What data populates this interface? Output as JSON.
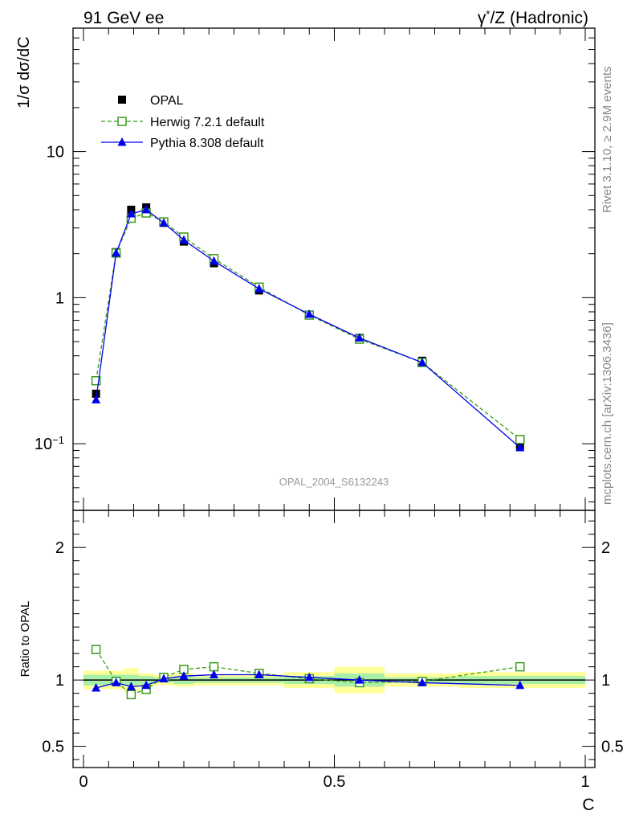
{
  "header": {
    "left": "91 GeV ee",
    "right_prefix": "γ",
    "right_sup": "*",
    "right_suffix": "/Z (Hadronic)"
  },
  "side_text": {
    "rivet_prefix": "Rivet 3.1.10, ",
    "rivet_ge": "≥",
    "rivet_suffix": " 2.9M events",
    "mcplots": "mcplots.cern.ch [arXiv:1306.3436]"
  },
  "watermark": "OPAL_2004_S6132243",
  "colors": {
    "data": "#000000",
    "herwig": "#3a9a1a",
    "pythia": "#0000ee",
    "band_inner": "#a8f0a8",
    "band_outer": "#ffff99"
  },
  "chart_data": [
    {
      "type": "line",
      "panel": "main",
      "ylabel": "1/σ dσ/dC",
      "yscale": "log",
      "xlim": [
        0,
        1
      ],
      "ylim": [
        0.035,
        70
      ],
      "yticks": [
        {
          "value": 0.1,
          "label_base": "10",
          "label_exp": "−1"
        },
        {
          "value": 1,
          "label_base": "1",
          "label_exp": ""
        },
        {
          "value": 10,
          "label_base": "10",
          "label_exp": ""
        }
      ],
      "legend": {
        "placement": "top-left",
        "entries": [
          "OPAL",
          "Herwig 7.2.1 default",
          "Pythia 8.308 default"
        ]
      },
      "x": [
        0.025,
        0.065,
        0.095,
        0.125,
        0.16,
        0.2,
        0.26,
        0.35,
        0.45,
        0.55,
        0.675,
        0.87
      ],
      "series": [
        {
          "name": "OPAL",
          "marker": "square-filled",
          "values": [
            0.22,
            2.05,
            4.0,
            4.15,
            3.25,
            2.42,
            1.72,
            1.12,
            0.76,
            0.53,
            0.37,
            0.097
          ]
        },
        {
          "name": "Herwig 7.2.1 default",
          "marker": "square-open",
          "line": "dashed",
          "values": [
            0.27,
            2.02,
            3.5,
            3.8,
            3.3,
            2.6,
            1.85,
            1.18,
            0.76,
            0.52,
            0.36,
            0.107
          ]
        },
        {
          "name": "Pythia 8.308 default",
          "marker": "triangle-filled",
          "line": "solid",
          "values": [
            0.2,
            2.02,
            3.75,
            4.0,
            3.25,
            2.48,
            1.78,
            1.15,
            0.77,
            0.53,
            0.36,
            0.094
          ]
        }
      ]
    },
    {
      "type": "line",
      "panel": "ratio",
      "ylabel": "Ratio to OPAL",
      "xlabel": "C",
      "xlim": [
        0,
        1
      ],
      "ylim": [
        0.34,
        2.28
      ],
      "xticks": [
        {
          "value": 0,
          "label": "0"
        },
        {
          "value": 0.5,
          "label": "0.5"
        },
        {
          "value": 1,
          "label": "1"
        }
      ],
      "yticks": [
        {
          "value": 0.5,
          "label": "0.5"
        },
        {
          "value": 1,
          "label": "1"
        },
        {
          "value": 2,
          "label": "2"
        }
      ],
      "bands": [
        {
          "x0": 0.0,
          "x1": 0.04,
          "inner": [
            0.96,
            1.04
          ],
          "outer": [
            0.93,
            1.07
          ]
        },
        {
          "x0": 0.04,
          "x1": 0.08,
          "inner": [
            0.96,
            1.04
          ],
          "outer": [
            0.93,
            1.07
          ]
        },
        {
          "x0": 0.08,
          "x1": 0.11,
          "inner": [
            0.96,
            1.04
          ],
          "outer": [
            0.91,
            1.09
          ]
        },
        {
          "x0": 0.11,
          "x1": 0.14,
          "inner": [
            0.97,
            1.03
          ],
          "outer": [
            0.95,
            1.05
          ]
        },
        {
          "x0": 0.14,
          "x1": 0.18,
          "inner": [
            0.98,
            1.02
          ],
          "outer": [
            0.96,
            1.04
          ]
        },
        {
          "x0": 0.18,
          "x1": 0.22,
          "inner": [
            0.97,
            1.03
          ],
          "outer": [
            0.95,
            1.05
          ]
        },
        {
          "x0": 0.22,
          "x1": 0.3,
          "inner": [
            0.98,
            1.02
          ],
          "outer": [
            0.96,
            1.04
          ]
        },
        {
          "x0": 0.3,
          "x1": 0.4,
          "inner": [
            0.98,
            1.02
          ],
          "outer": [
            0.96,
            1.04
          ]
        },
        {
          "x0": 0.4,
          "x1": 0.5,
          "inner": [
            0.97,
            1.03
          ],
          "outer": [
            0.94,
            1.06
          ]
        },
        {
          "x0": 0.5,
          "x1": 0.6,
          "inner": [
            0.95,
            1.05
          ],
          "outer": [
            0.9,
            1.1
          ]
        },
        {
          "x0": 0.6,
          "x1": 0.75,
          "inner": [
            0.98,
            1.02
          ],
          "outer": [
            0.95,
            1.05
          ]
        },
        {
          "x0": 0.75,
          "x1": 1.0,
          "inner": [
            0.97,
            1.03
          ],
          "outer": [
            0.94,
            1.06
          ]
        }
      ],
      "x": [
        0.025,
        0.065,
        0.095,
        0.125,
        0.16,
        0.2,
        0.26,
        0.35,
        0.45,
        0.55,
        0.675,
        0.87
      ],
      "series": [
        {
          "name": "Herwig 7.2.1 default",
          "marker": "square-open",
          "line": "dashed",
          "values": [
            1.23,
            0.99,
            0.89,
            0.93,
            1.02,
            1.08,
            1.1,
            1.05,
            1.01,
            0.98,
            0.99,
            1.1
          ]
        },
        {
          "name": "Pythia 8.308 default",
          "marker": "triangle-filled",
          "line": "solid",
          "values": [
            0.94,
            0.98,
            0.95,
            0.96,
            1.01,
            1.03,
            1.04,
            1.04,
            1.02,
            1.0,
            0.98,
            0.96
          ]
        }
      ]
    }
  ]
}
